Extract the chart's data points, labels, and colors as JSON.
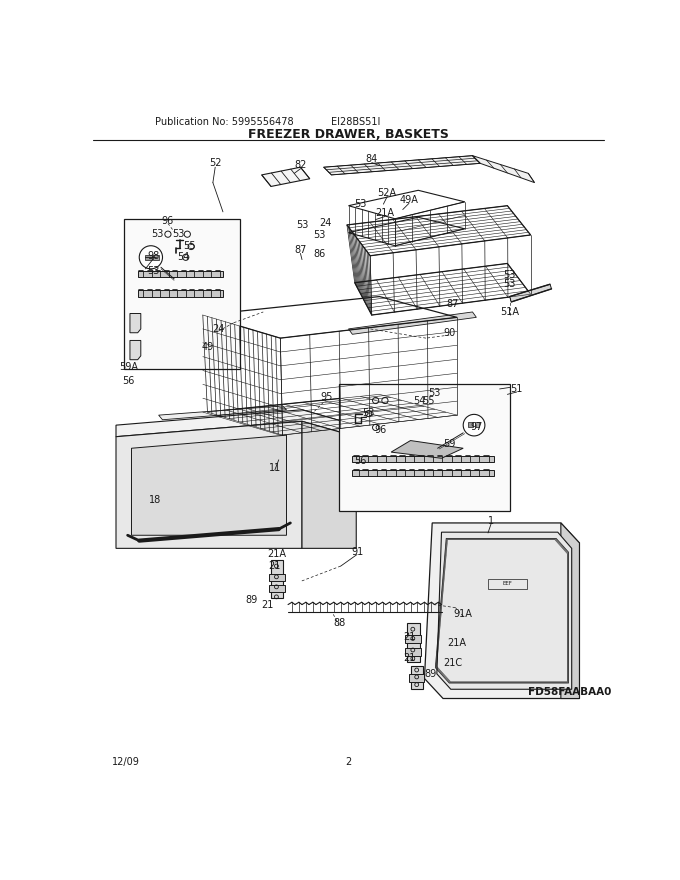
{
  "title": "FREEZER DRAWER, BASKETS",
  "pub_no": "Publication No: 5995556478",
  "model": "EI28BS51I",
  "diagram_code": "FD58FAABAA0",
  "date": "12/09",
  "page": "2",
  "bg_color": "#ffffff",
  "line_color": "#1a1a1a",
  "fig_width": 6.8,
  "fig_height": 8.8,
  "dpi": 100,
  "labels": [
    [
      "52",
      168,
      75
    ],
    [
      "82",
      278,
      77
    ],
    [
      "84",
      370,
      70
    ],
    [
      "52A",
      390,
      113
    ],
    [
      "53",
      355,
      128
    ],
    [
      "24",
      310,
      152
    ],
    [
      "21A",
      387,
      140
    ],
    [
      "49A",
      418,
      123
    ],
    [
      "53",
      280,
      155
    ],
    [
      "53",
      302,
      168
    ],
    [
      "87",
      278,
      188
    ],
    [
      "86",
      302,
      193
    ],
    [
      "53",
      547,
      220
    ],
    [
      "53",
      547,
      232
    ],
    [
      "87",
      474,
      258
    ],
    [
      "51A",
      548,
      268
    ],
    [
      "90",
      470,
      295
    ],
    [
      "96",
      107,
      150
    ],
    [
      "53",
      93,
      167
    ],
    [
      "53",
      120,
      167
    ],
    [
      "55",
      135,
      182
    ],
    [
      "54",
      127,
      196
    ],
    [
      "53",
      88,
      215
    ],
    [
      "98",
      88,
      195
    ],
    [
      "24",
      172,
      290
    ],
    [
      "49",
      158,
      313
    ],
    [
      "59A",
      56,
      340
    ],
    [
      "56",
      56,
      358
    ],
    [
      "95",
      312,
      378
    ],
    [
      "11",
      245,
      470
    ],
    [
      "18",
      91,
      512
    ],
    [
      "51",
      557,
      368
    ],
    [
      "53",
      451,
      373
    ],
    [
      "54",
      432,
      384
    ],
    [
      "55",
      443,
      384
    ],
    [
      "53",
      366,
      399
    ],
    [
      "96",
      381,
      421
    ],
    [
      "59",
      470,
      440
    ],
    [
      "97",
      505,
      418
    ],
    [
      "56",
      355,
      462
    ],
    [
      "21A",
      248,
      582
    ],
    [
      "21",
      245,
      598
    ],
    [
      "91",
      351,
      580
    ],
    [
      "89",
      215,
      642
    ],
    [
      "21",
      235,
      648
    ],
    [
      "88",
      328,
      672
    ],
    [
      "91A",
      488,
      660
    ],
    [
      "21",
      418,
      690
    ],
    [
      "21A",
      480,
      698
    ],
    [
      "21",
      418,
      718
    ],
    [
      "21C",
      474,
      724
    ],
    [
      "89",
      446,
      738
    ],
    [
      "1",
      524,
      540
    ]
  ]
}
